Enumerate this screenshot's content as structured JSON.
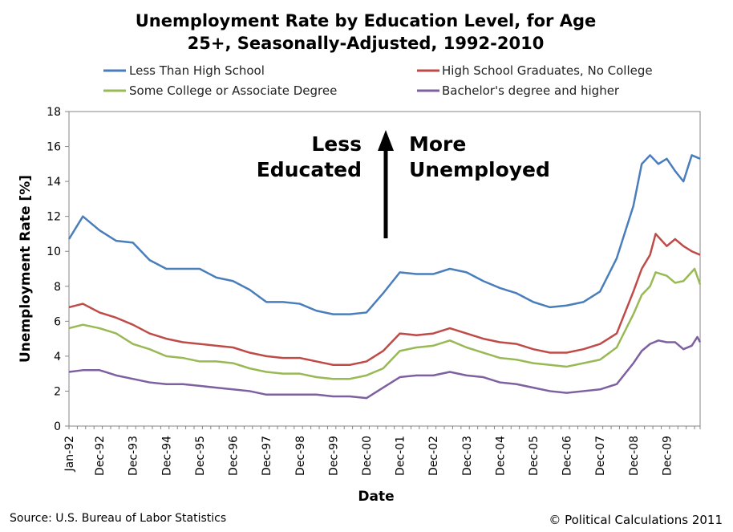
{
  "chart_data": {
    "type": "line",
    "title_lines": [
      "Unemployment Rate by Education Level, for Age",
      "25+, Seasonally-Adjusted, 1992-2010"
    ],
    "xlabel": "Date",
    "ylabel": "Unemployment Rate [%]",
    "ylim": [
      0,
      18
    ],
    "yticks": [
      "0",
      "2",
      "4",
      "6",
      "8",
      "10",
      "12",
      "14",
      "16",
      "18"
    ],
    "xticks": [
      "Jan-92",
      "Dec-92",
      "Dec-93",
      "Dec-94",
      "Dec-95",
      "Dec-96",
      "Dec-97",
      "Dec-98",
      "Dec-99",
      "Dec-00",
      "Dec-01",
      "Dec-02",
      "Dec-03",
      "Dec-04",
      "Dec-05",
      "Dec-06",
      "Dec-07",
      "Dec-08",
      "Dec-09"
    ],
    "grid": false,
    "legend_position": "top",
    "x_range": [
      "Jan-92",
      "Dec-10"
    ],
    "series": [
      {
        "name": "Less Than High School",
        "color": "#4a7ebb",
        "points": [
          {
            "x": "Jan-92",
            "y": 10.7
          },
          {
            "x": "Jun-92",
            "y": 12.0
          },
          {
            "x": "Dec-92",
            "y": 11.2
          },
          {
            "x": "Jun-93",
            "y": 10.6
          },
          {
            "x": "Dec-93",
            "y": 10.5
          },
          {
            "x": "Jun-94",
            "y": 9.5
          },
          {
            "x": "Dec-94",
            "y": 9.0
          },
          {
            "x": "Jun-95",
            "y": 9.0
          },
          {
            "x": "Dec-95",
            "y": 9.0
          },
          {
            "x": "Jun-96",
            "y": 8.5
          },
          {
            "x": "Dec-96",
            "y": 8.3
          },
          {
            "x": "Jun-97",
            "y": 7.8
          },
          {
            "x": "Dec-97",
            "y": 7.1
          },
          {
            "x": "Jun-98",
            "y": 7.1
          },
          {
            "x": "Dec-98",
            "y": 7.0
          },
          {
            "x": "Jun-99",
            "y": 6.6
          },
          {
            "x": "Dec-99",
            "y": 6.4
          },
          {
            "x": "Jun-00",
            "y": 6.4
          },
          {
            "x": "Dec-00",
            "y": 6.5
          },
          {
            "x": "Jun-01",
            "y": 7.6
          },
          {
            "x": "Dec-01",
            "y": 8.8
          },
          {
            "x": "Jun-02",
            "y": 8.7
          },
          {
            "x": "Dec-02",
            "y": 8.7
          },
          {
            "x": "Jun-03",
            "y": 9.0
          },
          {
            "x": "Dec-03",
            "y": 8.8
          },
          {
            "x": "Jun-04",
            "y": 8.3
          },
          {
            "x": "Dec-04",
            "y": 7.9
          },
          {
            "x": "Jun-05",
            "y": 7.6
          },
          {
            "x": "Dec-05",
            "y": 7.1
          },
          {
            "x": "Jun-06",
            "y": 6.8
          },
          {
            "x": "Dec-06",
            "y": 6.9
          },
          {
            "x": "Jun-07",
            "y": 7.1
          },
          {
            "x": "Dec-07",
            "y": 7.7
          },
          {
            "x": "Jun-08",
            "y": 9.6
          },
          {
            "x": "Dec-08",
            "y": 12.6
          },
          {
            "x": "Mar-09",
            "y": 15.0
          },
          {
            "x": "Jun-09",
            "y": 15.5
          },
          {
            "x": "Sep-09",
            "y": 15.0
          },
          {
            "x": "Dec-09",
            "y": 15.3
          },
          {
            "x": "Mar-10",
            "y": 14.6
          },
          {
            "x": "Jun-10",
            "y": 14.0
          },
          {
            "x": "Sep-10",
            "y": 15.5
          },
          {
            "x": "Dec-10",
            "y": 15.3
          }
        ]
      },
      {
        "name": "High School Graduates, No College",
        "color": "#be4b48",
        "points": [
          {
            "x": "Jan-92",
            "y": 6.8
          },
          {
            "x": "Jun-92",
            "y": 7.0
          },
          {
            "x": "Dec-92",
            "y": 6.5
          },
          {
            "x": "Jun-93",
            "y": 6.2
          },
          {
            "x": "Dec-93",
            "y": 5.8
          },
          {
            "x": "Jun-94",
            "y": 5.3
          },
          {
            "x": "Dec-94",
            "y": 5.0
          },
          {
            "x": "Jun-95",
            "y": 4.8
          },
          {
            "x": "Dec-95",
            "y": 4.7
          },
          {
            "x": "Jun-96",
            "y": 4.6
          },
          {
            "x": "Dec-96",
            "y": 4.5
          },
          {
            "x": "Jun-97",
            "y": 4.2
          },
          {
            "x": "Dec-97",
            "y": 4.0
          },
          {
            "x": "Jun-98",
            "y": 3.9
          },
          {
            "x": "Dec-98",
            "y": 3.9
          },
          {
            "x": "Jun-99",
            "y": 3.7
          },
          {
            "x": "Dec-99",
            "y": 3.5
          },
          {
            "x": "Jun-00",
            "y": 3.5
          },
          {
            "x": "Dec-00",
            "y": 3.7
          },
          {
            "x": "Jun-01",
            "y": 4.3
          },
          {
            "x": "Dec-01",
            "y": 5.3
          },
          {
            "x": "Jun-02",
            "y": 5.2
          },
          {
            "x": "Dec-02",
            "y": 5.3
          },
          {
            "x": "Jun-03",
            "y": 5.6
          },
          {
            "x": "Dec-03",
            "y": 5.3
          },
          {
            "x": "Jun-04",
            "y": 5.0
          },
          {
            "x": "Dec-04",
            "y": 4.8
          },
          {
            "x": "Jun-05",
            "y": 4.7
          },
          {
            "x": "Dec-05",
            "y": 4.4
          },
          {
            "x": "Jun-06",
            "y": 4.2
          },
          {
            "x": "Dec-06",
            "y": 4.2
          },
          {
            "x": "Jun-07",
            "y": 4.4
          },
          {
            "x": "Dec-07",
            "y": 4.7
          },
          {
            "x": "Jun-08",
            "y": 5.3
          },
          {
            "x": "Dec-08",
            "y": 7.7
          },
          {
            "x": "Mar-09",
            "y": 9.0
          },
          {
            "x": "Jun-09",
            "y": 9.8
          },
          {
            "x": "Aug-09",
            "y": 11.0
          },
          {
            "x": "Dec-09",
            "y": 10.3
          },
          {
            "x": "Mar-10",
            "y": 10.7
          },
          {
            "x": "Jun-10",
            "y": 10.3
          },
          {
            "x": "Sep-10",
            "y": 10.0
          },
          {
            "x": "Dec-10",
            "y": 9.8
          }
        ]
      },
      {
        "name": "Some College or Associate Degree",
        "color": "#98b954",
        "points": [
          {
            "x": "Jan-92",
            "y": 5.6
          },
          {
            "x": "Jun-92",
            "y": 5.8
          },
          {
            "x": "Dec-92",
            "y": 5.6
          },
          {
            "x": "Jun-93",
            "y": 5.3
          },
          {
            "x": "Dec-93",
            "y": 4.7
          },
          {
            "x": "Jun-94",
            "y": 4.4
          },
          {
            "x": "Dec-94",
            "y": 4.0
          },
          {
            "x": "Jun-95",
            "y": 3.9
          },
          {
            "x": "Dec-95",
            "y": 3.7
          },
          {
            "x": "Jun-96",
            "y": 3.7
          },
          {
            "x": "Dec-96",
            "y": 3.6
          },
          {
            "x": "Jun-97",
            "y": 3.3
          },
          {
            "x": "Dec-97",
            "y": 3.1
          },
          {
            "x": "Jun-98",
            "y": 3.0
          },
          {
            "x": "Dec-98",
            "y": 3.0
          },
          {
            "x": "Jun-99",
            "y": 2.8
          },
          {
            "x": "Dec-99",
            "y": 2.7
          },
          {
            "x": "Jun-00",
            "y": 2.7
          },
          {
            "x": "Dec-00",
            "y": 2.9
          },
          {
            "x": "Jun-01",
            "y": 3.3
          },
          {
            "x": "Dec-01",
            "y": 4.3
          },
          {
            "x": "Jun-02",
            "y": 4.5
          },
          {
            "x": "Dec-02",
            "y": 4.6
          },
          {
            "x": "Jun-03",
            "y": 4.9
          },
          {
            "x": "Dec-03",
            "y": 4.5
          },
          {
            "x": "Jun-04",
            "y": 4.2
          },
          {
            "x": "Dec-04",
            "y": 3.9
          },
          {
            "x": "Jun-05",
            "y": 3.8
          },
          {
            "x": "Dec-05",
            "y": 3.6
          },
          {
            "x": "Jun-06",
            "y": 3.5
          },
          {
            "x": "Dec-06",
            "y": 3.4
          },
          {
            "x": "Jun-07",
            "y": 3.6
          },
          {
            "x": "Dec-07",
            "y": 3.8
          },
          {
            "x": "Jun-08",
            "y": 4.5
          },
          {
            "x": "Dec-08",
            "y": 6.4
          },
          {
            "x": "Mar-09",
            "y": 7.5
          },
          {
            "x": "Jun-09",
            "y": 8.0
          },
          {
            "x": "Aug-09",
            "y": 8.8
          },
          {
            "x": "Dec-09",
            "y": 8.6
          },
          {
            "x": "Mar-10",
            "y": 8.2
          },
          {
            "x": "Jun-10",
            "y": 8.3
          },
          {
            "x": "Oct-10",
            "y": 9.0
          },
          {
            "x": "Dec-10",
            "y": 8.1
          }
        ]
      },
      {
        "name": "Bachelor's degree and higher",
        "color": "#7d60a0",
        "points": [
          {
            "x": "Jan-92",
            "y": 3.1
          },
          {
            "x": "Jun-92",
            "y": 3.2
          },
          {
            "x": "Dec-92",
            "y": 3.2
          },
          {
            "x": "Jun-93",
            "y": 2.9
          },
          {
            "x": "Dec-93",
            "y": 2.7
          },
          {
            "x": "Jun-94",
            "y": 2.5
          },
          {
            "x": "Dec-94",
            "y": 2.4
          },
          {
            "x": "Jun-95",
            "y": 2.4
          },
          {
            "x": "Dec-95",
            "y": 2.3
          },
          {
            "x": "Jun-96",
            "y": 2.2
          },
          {
            "x": "Dec-96",
            "y": 2.1
          },
          {
            "x": "Jun-97",
            "y": 2.0
          },
          {
            "x": "Dec-97",
            "y": 1.8
          },
          {
            "x": "Jun-98",
            "y": 1.8
          },
          {
            "x": "Dec-98",
            "y": 1.8
          },
          {
            "x": "Jun-99",
            "y": 1.8
          },
          {
            "x": "Dec-99",
            "y": 1.7
          },
          {
            "x": "Jun-00",
            "y": 1.7
          },
          {
            "x": "Dec-00",
            "y": 1.6
          },
          {
            "x": "Jun-01",
            "y": 2.2
          },
          {
            "x": "Dec-01",
            "y": 2.8
          },
          {
            "x": "Jun-02",
            "y": 2.9
          },
          {
            "x": "Dec-02",
            "y": 2.9
          },
          {
            "x": "Jun-03",
            "y": 3.1
          },
          {
            "x": "Dec-03",
            "y": 2.9
          },
          {
            "x": "Jun-04",
            "y": 2.8
          },
          {
            "x": "Dec-04",
            "y": 2.5
          },
          {
            "x": "Jun-05",
            "y": 2.4
          },
          {
            "x": "Dec-05",
            "y": 2.2
          },
          {
            "x": "Jun-06",
            "y": 2.0
          },
          {
            "x": "Dec-06",
            "y": 1.9
          },
          {
            "x": "Jun-07",
            "y": 2.0
          },
          {
            "x": "Dec-07",
            "y": 2.1
          },
          {
            "x": "Jun-08",
            "y": 2.4
          },
          {
            "x": "Dec-08",
            "y": 3.6
          },
          {
            "x": "Mar-09",
            "y": 4.3
          },
          {
            "x": "Jun-09",
            "y": 4.7
          },
          {
            "x": "Sep-09",
            "y": 4.9
          },
          {
            "x": "Dec-09",
            "y": 4.8
          },
          {
            "x": "Mar-10",
            "y": 4.8
          },
          {
            "x": "Jun-10",
            "y": 4.4
          },
          {
            "x": "Sep-10",
            "y": 4.6
          },
          {
            "x": "Nov-10",
            "y": 5.1
          },
          {
            "x": "Dec-10",
            "y": 4.8
          }
        ]
      }
    ],
    "annotations": {
      "left_lines": [
        "Less",
        "Educated"
      ],
      "right_lines": [
        "More",
        "Unemployed"
      ]
    }
  },
  "footer": {
    "source": "Source: U.S. Bureau of Labor Statistics",
    "credit": "© Political Calculations 2011"
  }
}
